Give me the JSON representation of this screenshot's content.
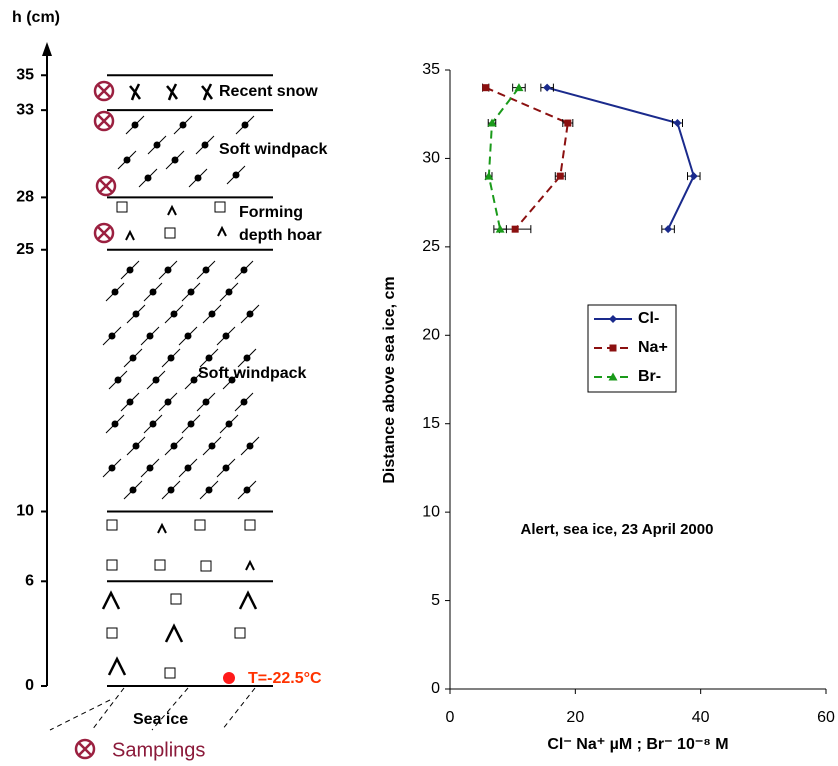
{
  "diagram": {
    "axis_label": "h (cm)",
    "ticks": [
      0,
      6,
      10,
      25,
      28,
      33,
      35
    ],
    "layer_labels": [
      "Recent snow",
      "Soft windpack",
      [
        "Forming",
        "depth hoar"
      ],
      "Soft windpack",
      "Sea ice"
    ],
    "temperature": "T=-22.5°C",
    "legend": "Samplings"
  },
  "chart_data": {
    "type": "line",
    "y": [
      34,
      32,
      29,
      26
    ],
    "series": [
      {
        "name": "Cl-",
        "color": "#1a2a8c",
        "marker": "diamond",
        "dash": false,
        "values": [
          15.5,
          36.3,
          38.9,
          34.8
        ],
        "errors": [
          1,
          0.8,
          1,
          1
        ]
      },
      {
        "name": "Na+",
        "color": "#8b1010",
        "marker": "square",
        "dash": true,
        "values": [
          5.7,
          18.8,
          17.6,
          10.4
        ],
        "errors": [
          0.5,
          0.8,
          0.8,
          2.5
        ]
      },
      {
        "name": "Br-",
        "color": "#1a9a1a",
        "marker": "triangle",
        "dash": true,
        "values": [
          11,
          6.7,
          6.2,
          8
        ],
        "errors": [
          1,
          0.6,
          0.5,
          1
        ]
      }
    ],
    "xlim": [
      0,
      60
    ],
    "xticks": [
      0,
      20,
      40,
      60
    ],
    "ylim": [
      0,
      35
    ],
    "yticks": [
      0,
      5,
      10,
      15,
      20,
      25,
      30,
      35
    ],
    "xlabel": "Cl⁻ Na⁺ µM ; Br⁻ 10⁻⁸ M",
    "ylabel": "Distance above sea ice, cm",
    "annotation": "Alert, sea ice, 23 April 2000"
  }
}
